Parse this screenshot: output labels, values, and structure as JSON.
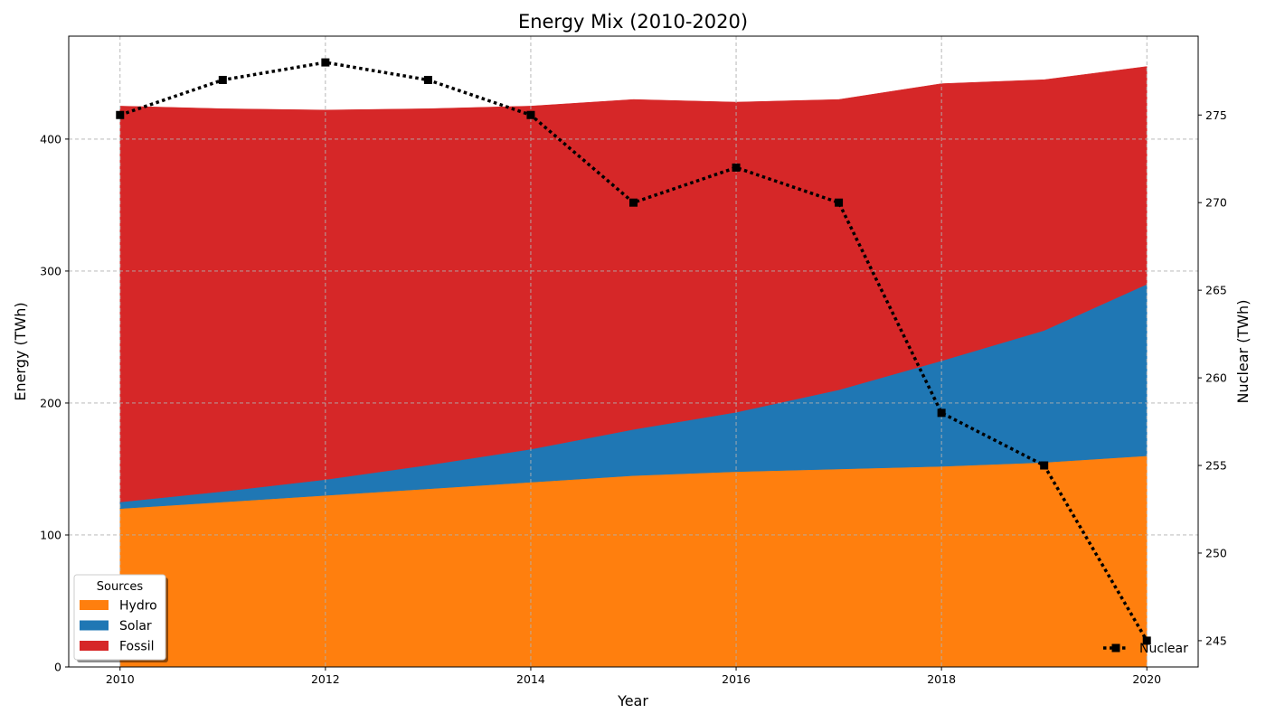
{
  "chart_data": {
    "type": "area",
    "title": "Energy Mix (2010-2020)",
    "xlabel": "Year",
    "ylabel": "Energy (TWh)",
    "y2label": "Nuclear (TWh)",
    "x": [
      2010,
      2011,
      2012,
      2013,
      2014,
      2015,
      2016,
      2017,
      2018,
      2019,
      2020
    ],
    "xlim": [
      2009.5,
      2020.5
    ],
    "ylim": [
      0,
      478
    ],
    "y2lim": [
      243.5,
      279.5
    ],
    "xticks": [
      2010,
      2012,
      2014,
      2016,
      2018,
      2020
    ],
    "yticks": [
      0,
      100,
      200,
      300,
      400
    ],
    "y2ticks": [
      245,
      250,
      255,
      260,
      265,
      270,
      275
    ],
    "stacked": true,
    "grid": true,
    "series": [
      {
        "name": "Hydro",
        "color": "#ff7f0e",
        "values": [
          120,
          125,
          130,
          135,
          140,
          145,
          148,
          150,
          152,
          155,
          160
        ]
      },
      {
        "name": "Solar",
        "color": "#1f77b4",
        "values": [
          5,
          8,
          12,
          18,
          25,
          35,
          45,
          60,
          80,
          100,
          130
        ]
      },
      {
        "name": "Fossil",
        "color": "#d62728",
        "values": [
          300,
          290,
          280,
          270,
          260,
          250,
          235,
          220,
          210,
          190,
          165
        ]
      }
    ],
    "line_series": {
      "name": "Nuclear",
      "axis": "right",
      "color": "#000000",
      "style": "dotted",
      "marker": "square",
      "values": [
        275,
        277,
        278,
        277,
        275,
        270,
        272,
        270,
        258,
        255,
        245
      ]
    },
    "legend": {
      "title": "Sources",
      "placement": "lower-left"
    },
    "legend2": {
      "placement": "lower-right"
    }
  }
}
